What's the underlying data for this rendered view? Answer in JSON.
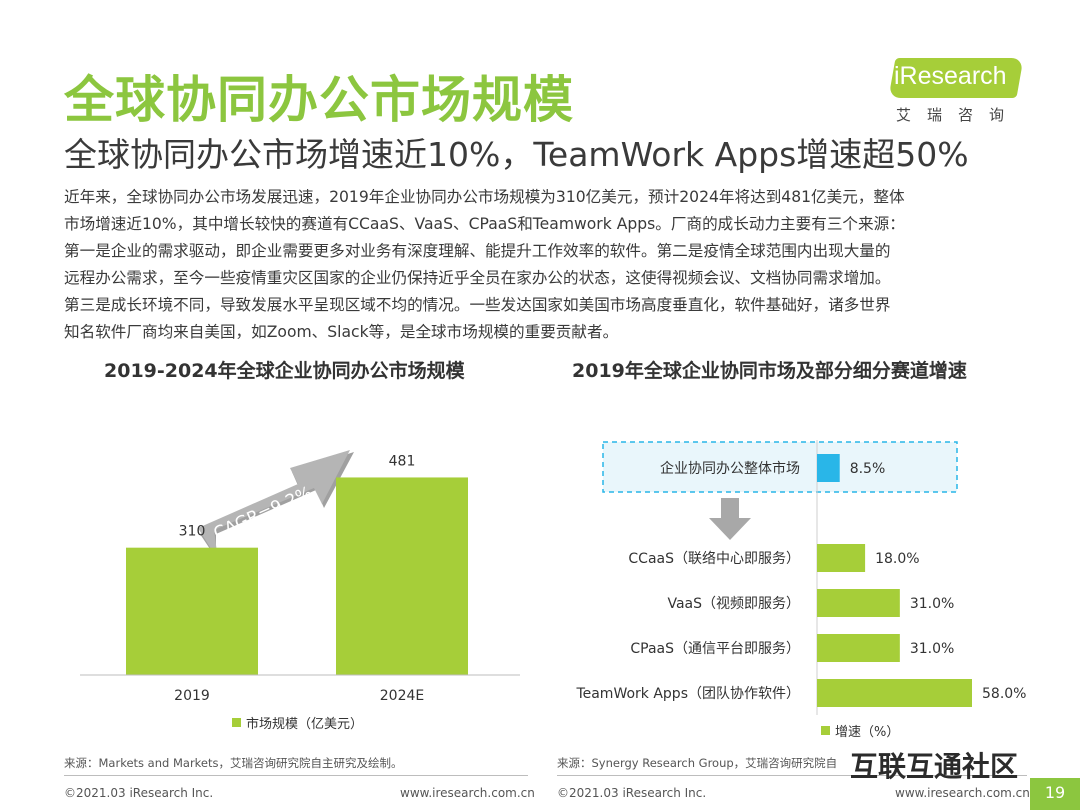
{
  "header": {
    "title": "全球协同办公市场规模",
    "subtitle": "全球协同办公市场增速近10%，TeamWork Apps增速超50%"
  },
  "logo": {
    "brand": "iResearch",
    "brand_cn": "艾瑞咨询"
  },
  "body": {
    "lines": [
      "近年来，全球协同办公市场发展迅速，2019年企业协同办公市场规模为310亿美元，预计2024年将达到481亿美元，整体",
      "市场增速近10%，其中增长较快的赛道有CCaaS、VaaS、CPaaS和Teamwork Apps。厂商的成长动力主要有三个来源：",
      "第一是企业的需求驱动，即企业需要更多对业务有深度理解、能提升工作效率的软件。第二是疫情全球范围内出现大量的",
      "远程办公需求，至今一些疫情重灾区国家的企业仍保持近乎全员在家办公的状态，这使得视频会议、文档协同需求增加。",
      "第三是成长环境不同，导致发展水平呈现区域不均的情况。一些发达国家如美国市场高度垂直化，软件基础好，诸多世界",
      "知名软件厂商均来自美国，如Zoom、Slack等，是全球市场规模的重要贡献者。"
    ]
  },
  "chart_data": [
    {
      "type": "bar",
      "title": "2019-2024年全球企业协同办公市场规模",
      "categories": [
        "2019",
        "2024E"
      ],
      "series": [
        {
          "name": "市场规模（亿美元）",
          "values": [
            310,
            481
          ]
        }
      ],
      "annotation": "CAGR=9.2%",
      "color": "#a6ce39",
      "ylim": [
        0,
        560
      ]
    },
    {
      "type": "bar",
      "orientation": "horizontal",
      "title": "2019年全球企业协同市场及部分细分赛道增速",
      "categories": [
        "企业协同办公整体市场",
        "CCaaS（联络中心即服务）",
        "VaaS（视频即服务）",
        "CPaaS（通信平台即服务）",
        "TeamWork Apps（团队协作软件）"
      ],
      "series": [
        {
          "name": "增速（%）",
          "values": [
            8.5,
            18.0,
            31.0,
            31.0,
            58.0
          ]
        }
      ],
      "value_labels": [
        "8.5%",
        "18.0%",
        "31.0%",
        "31.0%",
        "58.0%"
      ],
      "colors": [
        "#29b6e8",
        "#a6ce39",
        "#a6ce39",
        "#a6ce39",
        "#a6ce39"
      ],
      "xlim": [
        0,
        62
      ]
    }
  ],
  "sources": {
    "left": "来源：Markets and Markets，艾瑞咨询研究院自主研究及绘制。",
    "right": "来源：Synergy Research Group，艾瑞咨询研究院自"
  },
  "footer": {
    "copyright_left": "©2021.03 iResearch Inc.",
    "url_left": "www.iresearch.com.cn",
    "copyright_right": "©2021.03 iResearch Inc.",
    "url_right": "www.iresearch.com.cn",
    "page_number": "19"
  },
  "watermark": "互联互通社区"
}
